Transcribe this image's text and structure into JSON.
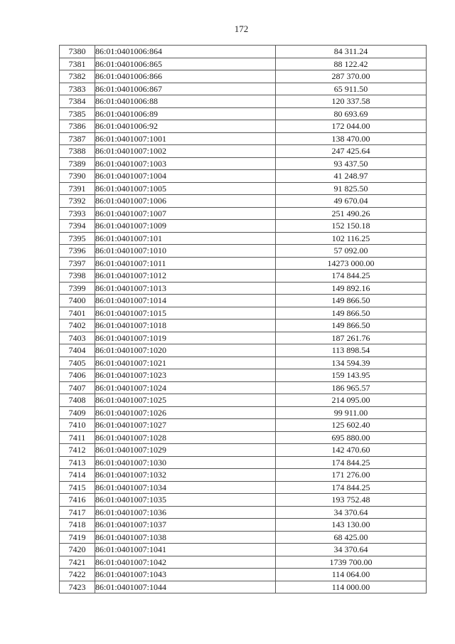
{
  "page": {
    "number": "172"
  },
  "table": {
    "columns": [
      "row-number",
      "cadastral-number",
      "amount"
    ],
    "rows": [
      {
        "no": "7380",
        "cadastral": "86:01:0401006:864",
        "amount": "84 311.24"
      },
      {
        "no": "7381",
        "cadastral": "86:01:0401006:865",
        "amount": "88 122.42"
      },
      {
        "no": "7382",
        "cadastral": "86:01:0401006:866",
        "amount": "287 370.00"
      },
      {
        "no": "7383",
        "cadastral": "86:01:0401006:867",
        "amount": "65 911.50"
      },
      {
        "no": "7384",
        "cadastral": "86:01:0401006:88",
        "amount": "120 337.58"
      },
      {
        "no": "7385",
        "cadastral": "86:01:0401006:89",
        "amount": "80 693.69"
      },
      {
        "no": "7386",
        "cadastral": "86:01:0401006:92",
        "amount": "172 044.00"
      },
      {
        "no": "7387",
        "cadastral": "86:01:0401007:1001",
        "amount": "138 470.00"
      },
      {
        "no": "7388",
        "cadastral": "86:01:0401007:1002",
        "amount": "247 425.64"
      },
      {
        "no": "7389",
        "cadastral": "86:01:0401007:1003",
        "amount": "93 437.50"
      },
      {
        "no": "7390",
        "cadastral": "86:01:0401007:1004",
        "amount": "41 248.97"
      },
      {
        "no": "7391",
        "cadastral": "86:01:0401007:1005",
        "amount": "91 825.50"
      },
      {
        "no": "7392",
        "cadastral": "86:01:0401007:1006",
        "amount": "49 670.04"
      },
      {
        "no": "7393",
        "cadastral": "86:01:0401007:1007",
        "amount": "251 490.26"
      },
      {
        "no": "7394",
        "cadastral": "86:01:0401007:1009",
        "amount": "152 150.18"
      },
      {
        "no": "7395",
        "cadastral": "86:01:0401007:101",
        "amount": "102 116.25"
      },
      {
        "no": "7396",
        "cadastral": "86:01:0401007:1010",
        "amount": "57 092.00"
      },
      {
        "no": "7397",
        "cadastral": "86:01:0401007:1011",
        "amount": "14273 000.00"
      },
      {
        "no": "7398",
        "cadastral": "86:01:0401007:1012",
        "amount": "174 844.25"
      },
      {
        "no": "7399",
        "cadastral": "86:01:0401007:1013",
        "amount": "149 892.16"
      },
      {
        "no": "7400",
        "cadastral": "86:01:0401007:1014",
        "amount": "149 866.50"
      },
      {
        "no": "7401",
        "cadastral": "86:01:0401007:1015",
        "amount": "149 866.50"
      },
      {
        "no": "7402",
        "cadastral": "86:01:0401007:1018",
        "amount": "149 866.50"
      },
      {
        "no": "7403",
        "cadastral": "86:01:0401007:1019",
        "amount": "187 261.76"
      },
      {
        "no": "7404",
        "cadastral": "86:01:0401007:1020",
        "amount": "113 898.54"
      },
      {
        "no": "7405",
        "cadastral": "86:01:0401007:1021",
        "amount": "134 594.39"
      },
      {
        "no": "7406",
        "cadastral": "86:01:0401007:1023",
        "amount": "159 143.95"
      },
      {
        "no": "7407",
        "cadastral": "86:01:0401007:1024",
        "amount": "186 965.57"
      },
      {
        "no": "7408",
        "cadastral": "86:01:0401007:1025",
        "amount": "214 095.00"
      },
      {
        "no": "7409",
        "cadastral": "86:01:0401007:1026",
        "amount": "99 911.00"
      },
      {
        "no": "7410",
        "cadastral": "86:01:0401007:1027",
        "amount": "125 602.40"
      },
      {
        "no": "7411",
        "cadastral": "86:01:0401007:1028",
        "amount": "695 880.00"
      },
      {
        "no": "7412",
        "cadastral": "86:01:0401007:1029",
        "amount": "142 470.60"
      },
      {
        "no": "7413",
        "cadastral": "86:01:0401007:1030",
        "amount": "174 844.25"
      },
      {
        "no": "7414",
        "cadastral": "86:01:0401007:1032",
        "amount": "171 276.00"
      },
      {
        "no": "7415",
        "cadastral": "86:01:0401007:1034",
        "amount": "174 844.25"
      },
      {
        "no": "7416",
        "cadastral": "86:01:0401007:1035",
        "amount": "193 752.48"
      },
      {
        "no": "7417",
        "cadastral": "86:01:0401007:1036",
        "amount": "34 370.64"
      },
      {
        "no": "7418",
        "cadastral": "86:01:0401007:1037",
        "amount": "143 130.00"
      },
      {
        "no": "7419",
        "cadastral": "86:01:0401007:1038",
        "amount": "68 425.00"
      },
      {
        "no": "7420",
        "cadastral": "86:01:0401007:1041",
        "amount": "34 370.64"
      },
      {
        "no": "7421",
        "cadastral": "86:01:0401007:1042",
        "amount": "1739 700.00"
      },
      {
        "no": "7422",
        "cadastral": "86:01:0401007:1043",
        "amount": "114 064.00"
      },
      {
        "no": "7423",
        "cadastral": "86:01:0401007:1044",
        "amount": "114 000.00"
      }
    ]
  }
}
